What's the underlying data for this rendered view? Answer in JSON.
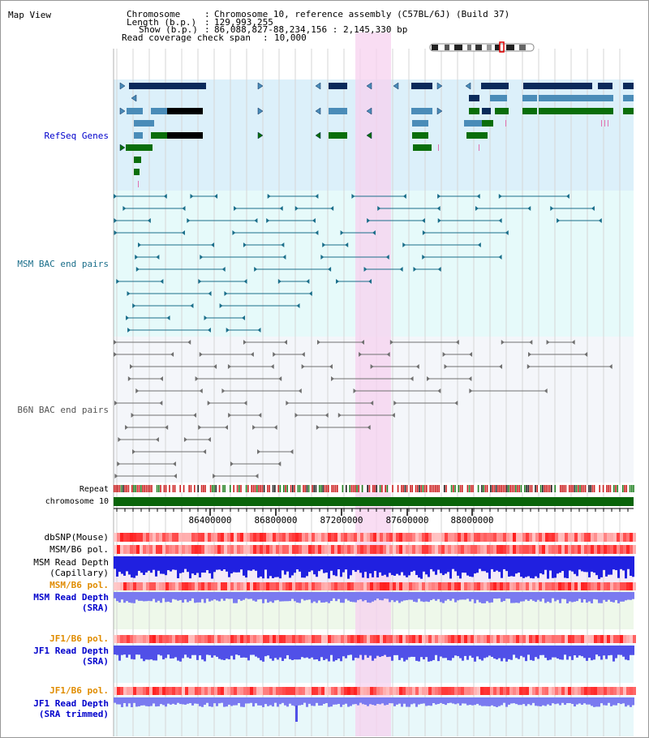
{
  "title": "Map View",
  "header": {
    "chromosome_key": "Chromosome",
    "chromosome_val": "Chromosome 10, reference assembly (C57BL/6J) (Build 37)",
    "length_key": "Length (b.p.)",
    "length_val": "129,993,255",
    "show_key": "Show (b.p.)",
    "show_val": "86,088,827-88,234,156 : 2,145,330 bp",
    "coverage_key": "Read coverage check span",
    "coverage_val": "10,000"
  },
  "tracks": {
    "refseq": "RefSeq Genes",
    "msm_bac": "MSM BAC end pairs",
    "b6n_bac": "B6N BAC end pairs",
    "repeat": "Repeat",
    "chromosome": "chromosome 10",
    "dbsnp": "dbSNP(Mouse)",
    "msm_pol": "MSM/B6 pol.",
    "msm_depth_cap_1": "MSM Read Depth",
    "msm_depth_cap_2": "(Capillary)",
    "msm_pol_sra": "MSM/B6 pol.",
    "msm_depth_sra_1": "MSM Read Depth",
    "msm_depth_sra_2": "(SRA)",
    "jf1_pol": "JF1/B6 pol.",
    "jf1_depth_1": "JF1 Read Depth",
    "jf1_depth_2": "(SRA)",
    "jf1_pol_trim": "JF1/B6 pol.",
    "jf1_trim_1": "JF1 Read Depth",
    "jf1_trim_2": "(SRA trimmed)"
  },
  "ruler": {
    "ticks": [
      "86400000",
      "86800000",
      "87200000",
      "87600000",
      "88000000"
    ]
  },
  "colors": {
    "refseq_bg": "#dcf0fa",
    "msm_bg": "#e6fafa",
    "b6n_bg": "#f4f6fa",
    "highlight": "#f7d2ef",
    "navy": "#0a2a5a",
    "steel": "#4a8cb8",
    "green": "#0a6e0a",
    "teal": "#1a6e8a",
    "gray": "#707070",
    "chromosome": "#0a640a",
    "depth": "#3030e0",
    "depth_light": "#7a7af0",
    "label_blue": "#0000cc",
    "label_orange": "#e08c00"
  }
}
